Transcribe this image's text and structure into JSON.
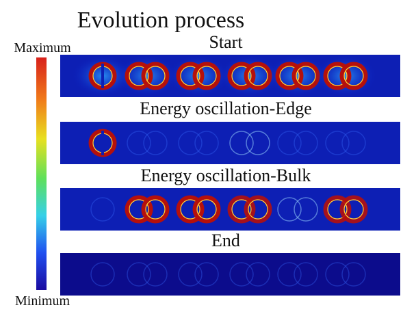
{
  "title": "Evolution process",
  "colorbar": {
    "max_label": "Maximum",
    "min_label": "Minimum"
  },
  "panels": [
    {
      "label": "Start"
    },
    {
      "label": "Energy oscillation-Edge"
    },
    {
      "label": "Energy oscillation-Bulk"
    },
    {
      "label": "End"
    }
  ]
}
